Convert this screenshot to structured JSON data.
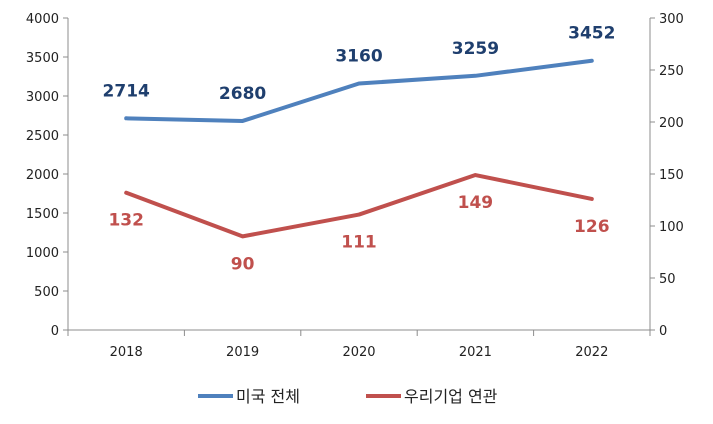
{
  "chart_data": {
    "type": "line",
    "categories": [
      "2018",
      "2019",
      "2020",
      "2021",
      "2022"
    ],
    "series": [
      {
        "name": "미국 전체",
        "axis": "left",
        "color": "#4f81bd",
        "label_color": "#1f3f6e",
        "values": [
          2714,
          2680,
          3160,
          3259,
          3452
        ]
      },
      {
        "name": "우리기업 연관",
        "axis": "right",
        "color": "#c0504d",
        "label_color": "#c0504d",
        "values": [
          132,
          90,
          111,
          149,
          126
        ]
      }
    ],
    "y_left": {
      "ylim": [
        0,
        4000
      ],
      "ticks": [
        0,
        500,
        1000,
        1500,
        2000,
        2500,
        3000,
        3500,
        4000
      ]
    },
    "y_right": {
      "ylim": [
        0,
        300
      ],
      "ticks": [
        0,
        50,
        100,
        150,
        200,
        250,
        300
      ]
    },
    "grid": false,
    "legend": "bottom-center"
  }
}
